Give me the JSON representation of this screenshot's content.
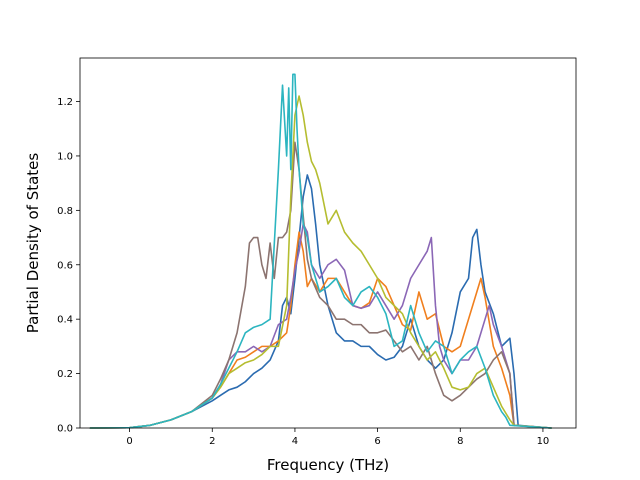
{
  "chart_data": {
    "type": "line",
    "title": "",
    "xlabel": "Frequency (THz)",
    "ylabel": "Partial Density of States",
    "xlim": [
      -1.2,
      10.8
    ],
    "ylim": [
      0.0,
      1.36
    ],
    "xticks": [
      0,
      2,
      4,
      6,
      8,
      10
    ],
    "xtick_labels": [
      "0",
      "2",
      "4",
      "6",
      "8",
      "10"
    ],
    "yticks": [
      0.0,
      0.2,
      0.4,
      0.6,
      0.8,
      1.0,
      1.2
    ],
    "ytick_labels": [
      "0.0",
      "0.2",
      "0.4",
      "0.6",
      "0.8",
      "1.0",
      "1.2"
    ],
    "grid": false,
    "legend": "none",
    "series": [
      {
        "color": "#2a6bb0",
        "x": [
          -0.95,
          0,
          0.5,
          1.0,
          1.5,
          2.0,
          2.2,
          2.4,
          2.6,
          2.8,
          3.0,
          3.2,
          3.4,
          3.6,
          3.7,
          3.8,
          3.9,
          4.0,
          4.1,
          4.2,
          4.3,
          4.4,
          4.5,
          4.6,
          4.8,
          5.0,
          5.2,
          5.4,
          5.6,
          5.8,
          6.0,
          6.2,
          6.4,
          6.6,
          6.8,
          7.0,
          7.2,
          7.4,
          7.6,
          7.8,
          8.0,
          8.2,
          8.3,
          8.4,
          8.5,
          8.6,
          8.8,
          9.0,
          9.2,
          9.3,
          9.4,
          10.2
        ],
        "y": [
          0,
          0.001,
          0.01,
          0.03,
          0.06,
          0.1,
          0.12,
          0.14,
          0.15,
          0.17,
          0.2,
          0.22,
          0.25,
          0.32,
          0.45,
          0.48,
          0.42,
          0.55,
          0.7,
          0.85,
          0.93,
          0.88,
          0.75,
          0.6,
          0.45,
          0.35,
          0.32,
          0.32,
          0.3,
          0.3,
          0.27,
          0.25,
          0.26,
          0.3,
          0.4,
          0.3,
          0.25,
          0.22,
          0.25,
          0.35,
          0.5,
          0.55,
          0.7,
          0.73,
          0.6,
          0.5,
          0.42,
          0.3,
          0.33,
          0.2,
          0.01,
          0
        ]
      },
      {
        "color": "#f07f1e",
        "x": [
          -0.95,
          0,
          0.5,
          1.0,
          1.5,
          2.0,
          2.2,
          2.4,
          2.6,
          2.8,
          3.0,
          3.2,
          3.4,
          3.6,
          3.8,
          3.9,
          4.0,
          4.1,
          4.2,
          4.3,
          4.4,
          4.6,
          4.8,
          5.0,
          5.2,
          5.4,
          5.6,
          5.8,
          6.0,
          6.2,
          6.4,
          6.6,
          6.8,
          7.0,
          7.2,
          7.4,
          7.6,
          7.8,
          8.0,
          8.2,
          8.4,
          8.5,
          8.6,
          8.8,
          9.0,
          9.2,
          9.3,
          10.2
        ],
        "y": [
          0,
          0.001,
          0.01,
          0.03,
          0.06,
          0.11,
          0.15,
          0.2,
          0.25,
          0.26,
          0.28,
          0.3,
          0.3,
          0.32,
          0.35,
          0.45,
          0.6,
          0.72,
          0.65,
          0.52,
          0.55,
          0.5,
          0.55,
          0.55,
          0.5,
          0.45,
          0.44,
          0.46,
          0.55,
          0.52,
          0.45,
          0.38,
          0.36,
          0.5,
          0.4,
          0.42,
          0.3,
          0.28,
          0.3,
          0.4,
          0.5,
          0.55,
          0.48,
          0.3,
          0.22,
          0.12,
          0.01,
          0
        ]
      },
      {
        "color": "#8b67b6",
        "x": [
          -0.95,
          0,
          0.5,
          1.0,
          1.5,
          2.0,
          2.2,
          2.4,
          2.6,
          2.8,
          3.0,
          3.2,
          3.4,
          3.6,
          3.8,
          3.9,
          4.0,
          4.1,
          4.2,
          4.3,
          4.4,
          4.6,
          4.8,
          5.0,
          5.2,
          5.4,
          5.6,
          5.8,
          6.0,
          6.2,
          6.4,
          6.6,
          6.8,
          7.0,
          7.2,
          7.3,
          7.4,
          7.5,
          7.6,
          7.8,
          8.0,
          8.2,
          8.4,
          8.6,
          8.7,
          8.8,
          9.0,
          9.2,
          9.3,
          10.2
        ],
        "y": [
          0,
          0.001,
          0.01,
          0.03,
          0.06,
          0.11,
          0.16,
          0.25,
          0.28,
          0.28,
          0.3,
          0.28,
          0.3,
          0.38,
          0.4,
          0.48,
          0.58,
          0.65,
          0.75,
          0.72,
          0.6,
          0.55,
          0.6,
          0.62,
          0.58,
          0.45,
          0.44,
          0.45,
          0.5,
          0.45,
          0.4,
          0.45,
          0.55,
          0.6,
          0.65,
          0.7,
          0.45,
          0.3,
          0.25,
          0.2,
          0.25,
          0.25,
          0.3,
          0.4,
          0.45,
          0.38,
          0.3,
          0.2,
          0.01,
          0
        ]
      },
      {
        "color": "#8c7470",
        "x": [
          -0.95,
          0,
          0.5,
          1.0,
          1.5,
          2.0,
          2.2,
          2.4,
          2.6,
          2.8,
          2.9,
          3.0,
          3.1,
          3.2,
          3.3,
          3.4,
          3.5,
          3.6,
          3.7,
          3.8,
          3.9,
          4.0,
          4.1,
          4.2,
          4.3,
          4.4,
          4.6,
          4.8,
          5.0,
          5.2,
          5.4,
          5.6,
          5.8,
          6.0,
          6.2,
          6.4,
          6.6,
          6.8,
          7.0,
          7.2,
          7.4,
          7.6,
          7.8,
          8.0,
          8.2,
          8.4,
          8.6,
          8.8,
          9.0,
          9.2,
          9.3,
          10.2
        ],
        "y": [
          0,
          0.001,
          0.01,
          0.03,
          0.06,
          0.12,
          0.18,
          0.25,
          0.35,
          0.52,
          0.68,
          0.7,
          0.7,
          0.6,
          0.55,
          0.68,
          0.55,
          0.7,
          0.7,
          0.72,
          0.8,
          1.05,
          0.95,
          0.78,
          0.62,
          0.55,
          0.48,
          0.45,
          0.4,
          0.4,
          0.38,
          0.38,
          0.35,
          0.35,
          0.36,
          0.32,
          0.28,
          0.3,
          0.25,
          0.3,
          0.2,
          0.12,
          0.1,
          0.12,
          0.15,
          0.18,
          0.2,
          0.25,
          0.28,
          0.2,
          0.01,
          0
        ]
      },
      {
        "color": "#b5bd30",
        "x": [
          -0.95,
          0,
          0.5,
          1.0,
          1.5,
          2.0,
          2.2,
          2.4,
          2.6,
          2.8,
          3.0,
          3.2,
          3.4,
          3.6,
          3.8,
          3.9,
          4.0,
          4.1,
          4.2,
          4.3,
          4.4,
          4.5,
          4.6,
          4.8,
          5.0,
          5.2,
          5.4,
          5.6,
          5.8,
          6.0,
          6.2,
          6.4,
          6.6,
          6.8,
          7.0,
          7.2,
          7.4,
          7.6,
          7.8,
          8.0,
          8.2,
          8.4,
          8.6,
          8.8,
          9.0,
          9.2,
          9.3,
          10.2
        ],
        "y": [
          0,
          0.001,
          0.01,
          0.03,
          0.06,
          0.11,
          0.15,
          0.2,
          0.22,
          0.24,
          0.25,
          0.27,
          0.3,
          0.3,
          0.45,
          0.85,
          1.15,
          1.22,
          1.15,
          1.05,
          0.98,
          0.95,
          0.9,
          0.75,
          0.8,
          0.72,
          0.68,
          0.65,
          0.6,
          0.55,
          0.48,
          0.45,
          0.42,
          0.35,
          0.3,
          0.25,
          0.28,
          0.22,
          0.15,
          0.14,
          0.15,
          0.2,
          0.22,
          0.15,
          0.08,
          0.03,
          0.01,
          0
        ]
      },
      {
        "color": "#2cb5c0",
        "x": [
          -0.95,
          0,
          0.5,
          1.0,
          1.5,
          2.0,
          2.2,
          2.4,
          2.6,
          2.8,
          3.0,
          3.2,
          3.4,
          3.6,
          3.7,
          3.8,
          3.85,
          3.9,
          3.95,
          4.0,
          4.05,
          4.1,
          4.2,
          4.3,
          4.4,
          4.5,
          4.6,
          4.8,
          5.0,
          5.2,
          5.4,
          5.6,
          5.8,
          6.0,
          6.2,
          6.4,
          6.6,
          6.8,
          7.0,
          7.2,
          7.4,
          7.6,
          7.8,
          8.0,
          8.2,
          8.4,
          8.6,
          8.8,
          9.0,
          9.1,
          9.2,
          10.2
        ],
        "y": [
          0,
          0.001,
          0.01,
          0.03,
          0.06,
          0.11,
          0.16,
          0.22,
          0.28,
          0.35,
          0.37,
          0.38,
          0.4,
          0.95,
          1.26,
          1.0,
          1.25,
          0.95,
          1.3,
          1.3,
          1.1,
          0.95,
          0.75,
          0.7,
          0.6,
          0.55,
          0.5,
          0.52,
          0.55,
          0.48,
          0.45,
          0.5,
          0.52,
          0.48,
          0.42,
          0.3,
          0.32,
          0.45,
          0.35,
          0.28,
          0.32,
          0.3,
          0.2,
          0.25,
          0.28,
          0.3,
          0.22,
          0.12,
          0.06,
          0.04,
          0.01,
          0
        ]
      }
    ]
  }
}
